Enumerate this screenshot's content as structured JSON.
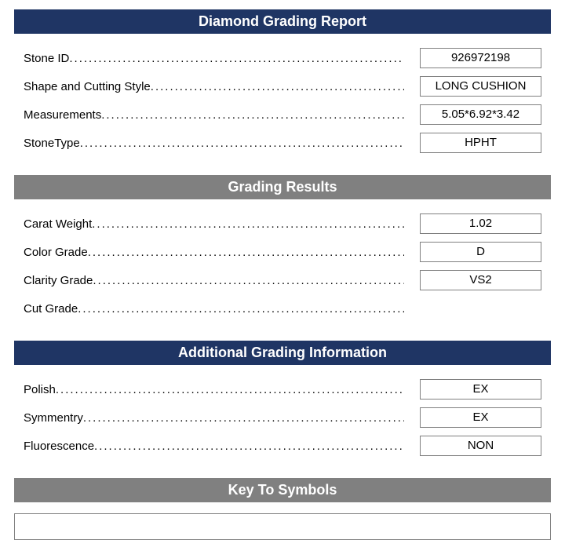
{
  "colors": {
    "navy": "#1f3564",
    "gray": "#808080",
    "white": "#ffffff",
    "text": "#000000",
    "border": "#808080"
  },
  "typography": {
    "header_fontsize": 18,
    "header_fontweight": "bold",
    "body_fontsize": 15,
    "font_family": "Arial"
  },
  "sections": {
    "main": {
      "title": "Diamond Grading Report",
      "header_bg": "#1f3564",
      "rows": [
        {
          "label": "Stone ID",
          "value": "926972198"
        },
        {
          "label": "Shape and Cutting Style",
          "value": "LONG CUSHION"
        },
        {
          "label": "Measurements",
          "value": "5.05*6.92*3.42"
        },
        {
          "label": "StoneType",
          "value": "HPHT"
        }
      ]
    },
    "grading": {
      "title": "Grading Results",
      "header_bg": "#808080",
      "rows": [
        {
          "label": "Carat Weight",
          "value": "1.02"
        },
        {
          "label": "Color Grade",
          "value": "D"
        },
        {
          "label": "Clarity Grade",
          "value": "VS2"
        },
        {
          "label": "Cut Grade",
          "value": null
        }
      ]
    },
    "additional": {
      "title": "Additional Grading Information",
      "header_bg": "#1f3564",
      "rows": [
        {
          "label": "Polish",
          "value": "EX"
        },
        {
          "label": "Symmentry",
          "value": "EX"
        },
        {
          "label": "Fluorescence",
          "value": "NON"
        }
      ]
    },
    "symbols": {
      "title": "Key To Symbols",
      "header_bg": "#808080",
      "content": ""
    }
  }
}
